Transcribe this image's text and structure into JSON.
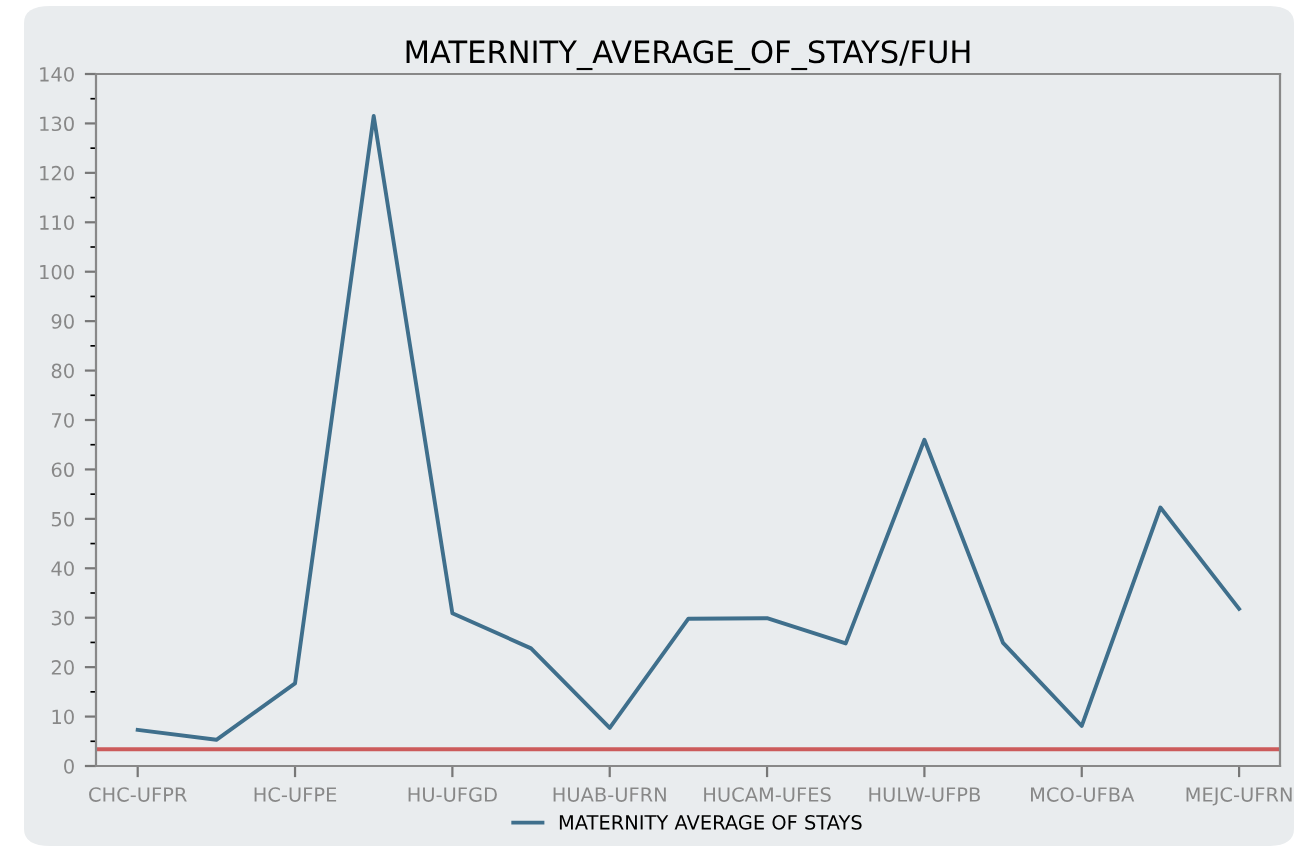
{
  "chart_data": {
    "type": "line",
    "title": "MATERNITY_AVERAGE_OF_STAYS/FUH",
    "categories": [
      "CHC-UFPR",
      null,
      "HC-UFPE",
      null,
      "HU-UFGD",
      null,
      "HUAB-UFRN",
      null,
      "HUCAM-UFES",
      null,
      "HULW-UFPB",
      null,
      "MCO-UFBA",
      null,
      "MEJC-UFRN"
    ],
    "series": [
      {
        "name": "MATERNITY AVERAGE OF STAYS",
        "color": "#3f6f8c",
        "values": [
          7.3,
          5.3,
          16.7,
          131.5,
          30.9,
          23.8,
          7.7,
          29.8,
          29.9,
          24.8,
          66,
          24.9,
          8.1,
          52.3,
          31.8
        ]
      }
    ],
    "ylim": [
      0,
      140
    ],
    "yticks": [
      0,
      10,
      20,
      30,
      40,
      50,
      60,
      70,
      80,
      90,
      100,
      110,
      120,
      130,
      140
    ],
    "ref_lines": [
      {
        "axis": "y",
        "value": 3.4,
        "color": "#cc5b5b"
      }
    ],
    "grid": false,
    "legend": "bottom",
    "marker": "none",
    "line_style": "solid"
  }
}
